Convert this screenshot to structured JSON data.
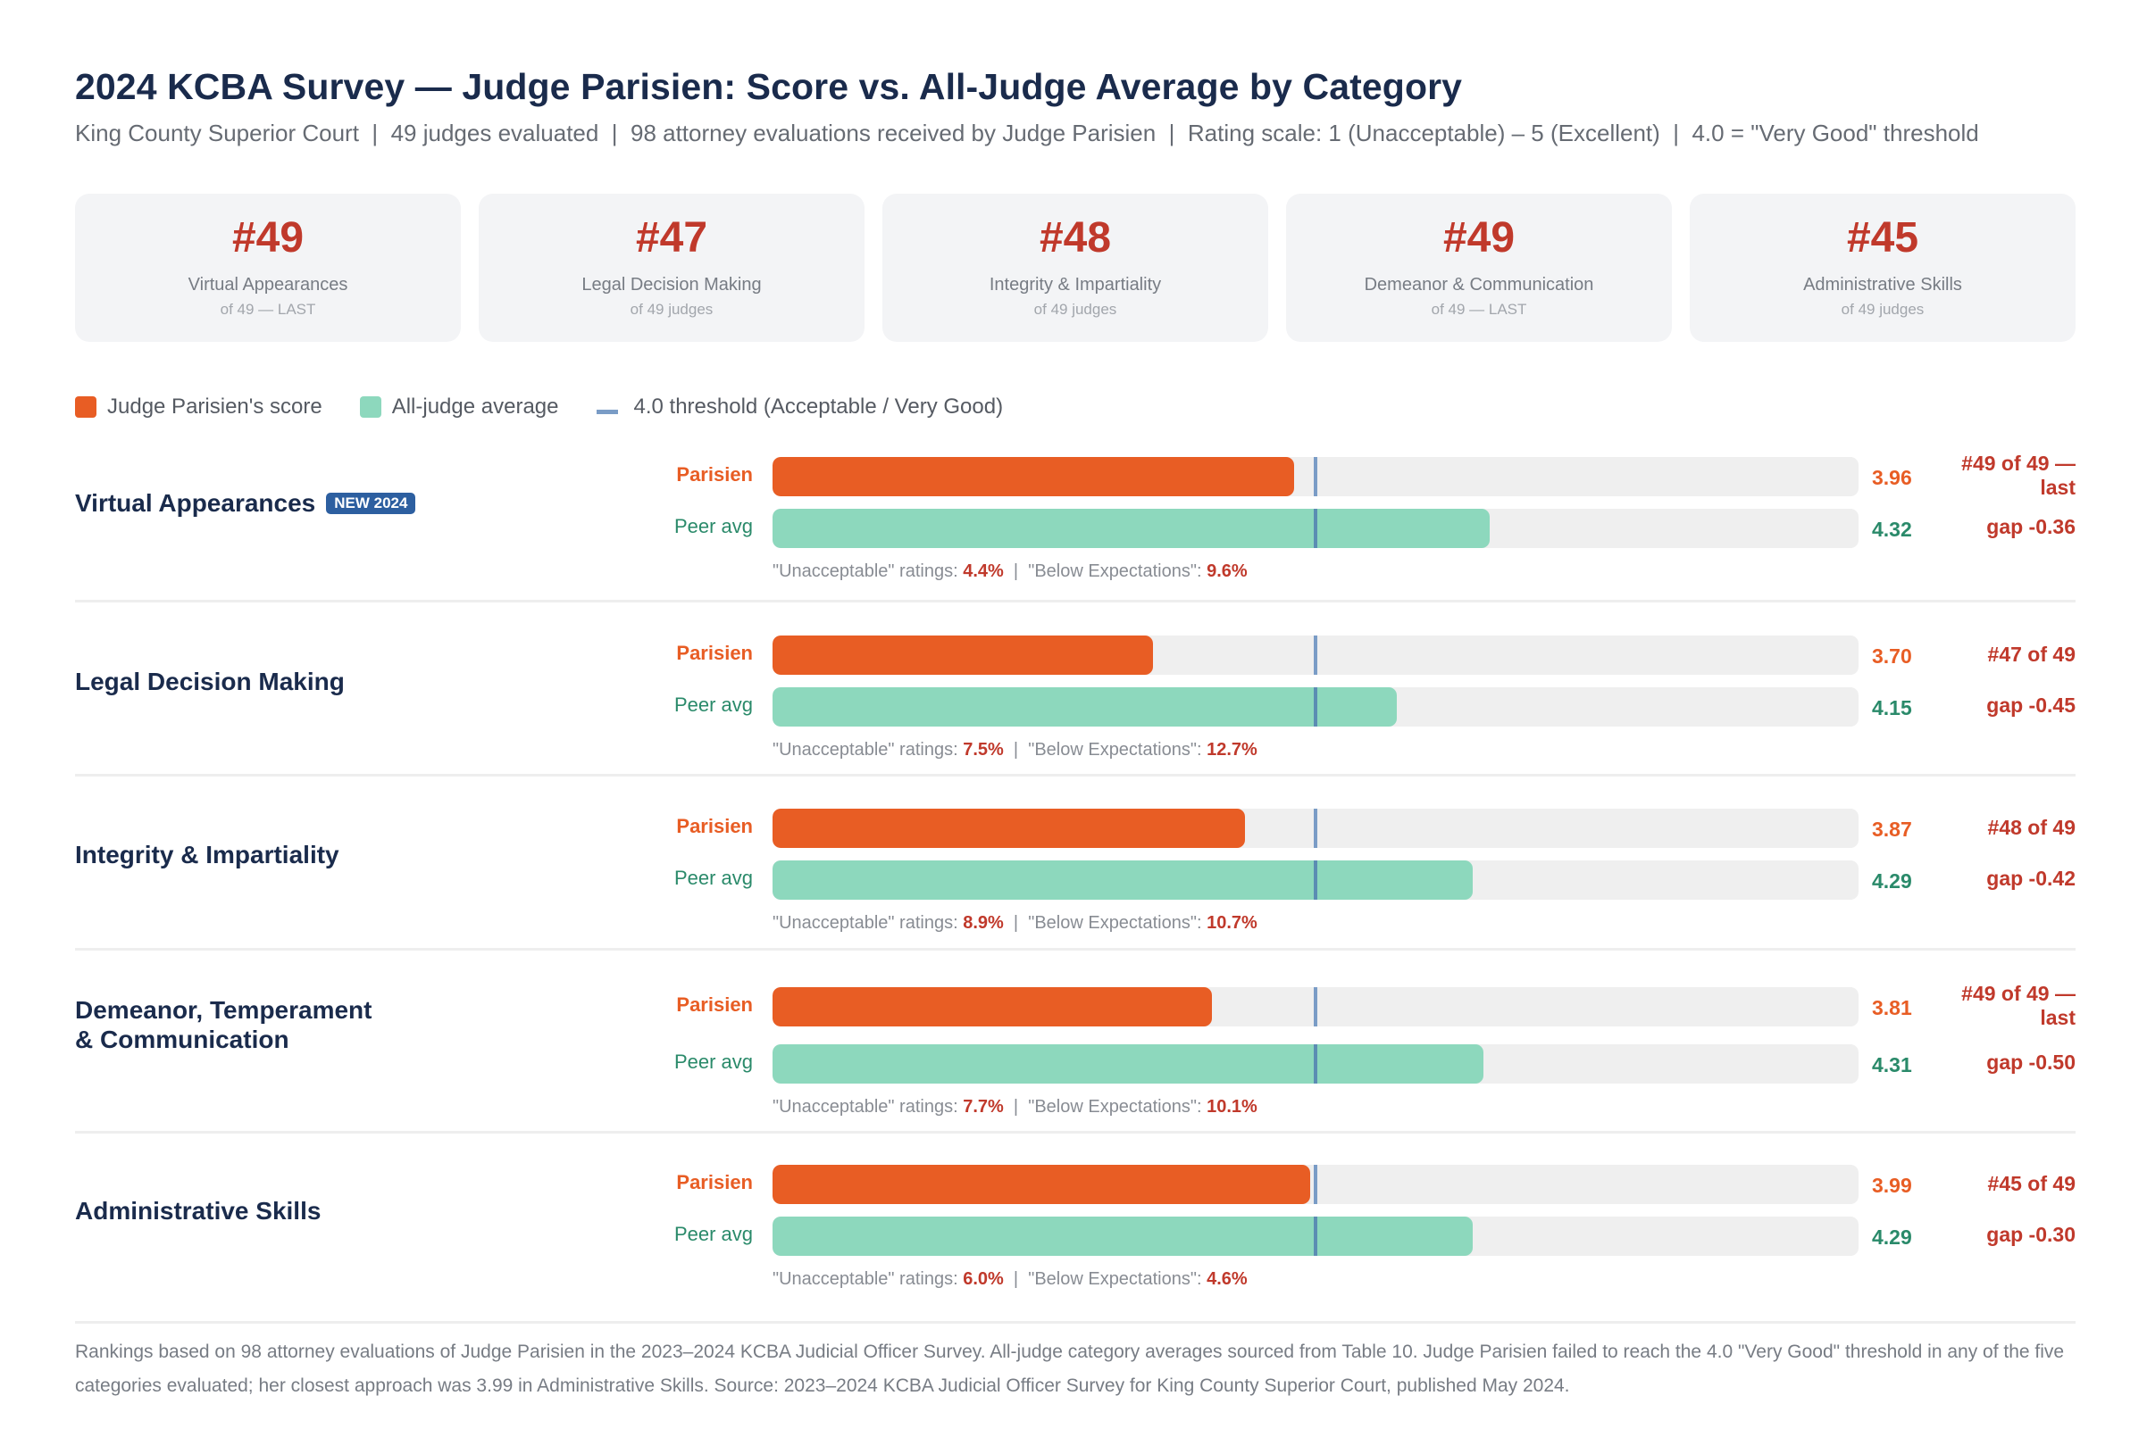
{
  "header": {
    "title": "2024 KCBA Survey — Judge Parisien: Score vs. All-Judge Average by Category",
    "subtitle": "King County Superior Court  |  49 judges evaluated  |  98 attorney evaluations received by Judge Parisien  |  Rating scale: 1 (Unacceptable) – 5 (Excellent)  |  4.0 = \"Very Good\" threshold"
  },
  "cards": [
    {
      "rank": "#49",
      "label": "Virtual Appearances",
      "sub": "of 49 — LAST"
    },
    {
      "rank": "#47",
      "label": "Legal Decision Making",
      "sub": "of 49 judges"
    },
    {
      "rank": "#48",
      "label": "Integrity & Impartiality",
      "sub": "of 49 judges"
    },
    {
      "rank": "#49",
      "label": "Demeanor & Communication",
      "sub": "of 49 — LAST"
    },
    {
      "rank": "#45",
      "label": "Administrative Skills",
      "sub": "of 49 judges"
    }
  ],
  "legend": {
    "judge": "Judge Parisien's score",
    "average": "All-judge average",
    "threshold": "4.0 threshold (Acceptable / Very Good)"
  },
  "labels": {
    "judge_bar": "Parisien",
    "avg_bar": "Peer avg",
    "unacceptable_prefix": "\"Unacceptable\" ratings: ",
    "separator": "  |  ",
    "below_prefix": "\"Below Expectations\": "
  },
  "colors": {
    "judge": "#e85d24",
    "average": "#8dd8bd",
    "threshold": "#7a9cc6",
    "rank_red": "#c0392b",
    "title_navy": "#1a2b4c",
    "badge_blue": "#2d5fa0"
  },
  "chart_data": {
    "type": "bar",
    "title": "2024 KCBA Survey — Judge Parisien: Score vs. All-Judge Average by Category",
    "orientation": "horizontal",
    "xlim": [
      3.0,
      5.0
    ],
    "threshold": 4.0,
    "categories": [
      "Virtual Appearances",
      "Legal Decision Making",
      "Integrity & Impartiality",
      "Demeanor, Temperament & Communication",
      "Administrative Skills"
    ],
    "series": [
      {
        "name": "Judge Parisien's score",
        "values": [
          3.96,
          3.7,
          3.87,
          3.81,
          3.99
        ]
      },
      {
        "name": "All-judge average",
        "values": [
          4.32,
          4.15,
          4.29,
          4.31,
          4.29
        ]
      }
    ],
    "legend": [
      "Judge Parisien's score",
      "All-judge average",
      "4.0 threshold (Acceptable / Very Good)"
    ],
    "legend_position": "top-left"
  },
  "rows": [
    {
      "category": "Virtual Appearances",
      "badge": "NEW 2024",
      "judge_score": 3.96,
      "judge_score_text": "3.96",
      "avg_score": 4.32,
      "avg_score_text": "4.32",
      "rank_line1": "#49 of 49 —",
      "rank_line2": "last",
      "gap": "gap -0.36",
      "unacceptable": "4.4%",
      "below": "9.6%"
    },
    {
      "category": "Legal Decision Making",
      "badge": null,
      "judge_score": 3.7,
      "judge_score_text": "3.70",
      "avg_score": 4.15,
      "avg_score_text": "4.15",
      "rank_line1": "#47 of 49",
      "rank_line2": null,
      "gap": "gap -0.45",
      "unacceptable": "7.5%",
      "below": "12.7%"
    },
    {
      "category": "Integrity & Impartiality",
      "badge": null,
      "judge_score": 3.87,
      "judge_score_text": "3.87",
      "avg_score": 4.29,
      "avg_score_text": "4.29",
      "rank_line1": "#48 of 49",
      "rank_line2": null,
      "gap": "gap -0.42",
      "unacceptable": "8.9%",
      "below": "10.7%"
    },
    {
      "category_line1": "Demeanor, Temperament",
      "category_line2": "& Communication",
      "category": "Demeanor, Temperament & Communication",
      "badge": null,
      "judge_score": 3.81,
      "judge_score_text": "3.81",
      "avg_score": 4.31,
      "avg_score_text": "4.31",
      "rank_line1": "#49 of 49 —",
      "rank_line2": "last",
      "gap": "gap -0.50",
      "unacceptable": "7.7%",
      "below": "10.1%"
    },
    {
      "category": "Administrative Skills",
      "badge": null,
      "judge_score": 3.99,
      "judge_score_text": "3.99",
      "avg_score": 4.29,
      "avg_score_text": "4.29",
      "rank_line1": "#45 of 49",
      "rank_line2": null,
      "gap": "gap -0.30",
      "unacceptable": "6.0%",
      "below": "4.6%"
    }
  ],
  "footer": "Rankings based on 98 attorney evaluations of Judge Parisien in the 2023–2024 KCBA Judicial Officer Survey. All-judge category averages sourced from Table 10. Judge Parisien failed to reach the 4.0 \"Very Good\" threshold in any of the five categories evaluated; her closest approach was 3.99 in Administrative Skills. Source: 2023–2024 KCBA Judicial Officer Survey for King County Superior Court, published May 2024."
}
